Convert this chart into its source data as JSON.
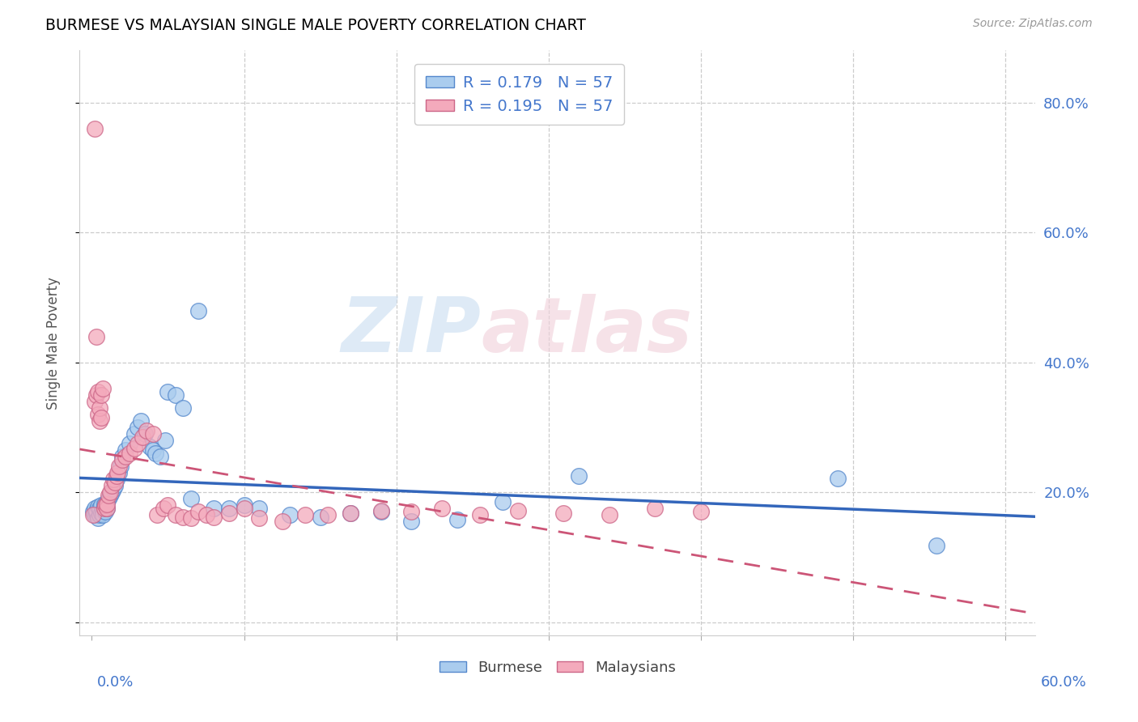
{
  "title": "BURMESE VS MALAYSIAN SINGLE MALE POVERTY CORRELATION CHART",
  "source": "Source: ZipAtlas.com",
  "ylabel": "Single Male Poverty",
  "yticks": [
    0.0,
    0.2,
    0.4,
    0.6,
    0.8
  ],
  "ytick_labels_right": [
    "",
    "20.0%",
    "40.0%",
    "60.0%",
    "80.0%"
  ],
  "xtick_labels_bottom": [
    "0.0%",
    "60.0%"
  ],
  "legend_r1": "R = 0.179   N = 57",
  "legend_r2": "R = 0.195   N = 57",
  "burmese_fill": "#aaccee",
  "burmese_edge": "#5588cc",
  "malaysian_fill": "#f4aabc",
  "malaysian_edge": "#cc6688",
  "trend_burmese_color": "#3366bb",
  "trend_malaysian_color": "#cc5577",
  "watermark_color": "#d0dde8",
  "watermark_color2": "#e8d0d8",
  "burmese_x": [
    0.001,
    0.002,
    0.002,
    0.003,
    0.003,
    0.004,
    0.004,
    0.005,
    0.005,
    0.006,
    0.006,
    0.007,
    0.007,
    0.008,
    0.008,
    0.009,
    0.01,
    0.01,
    0.011,
    0.012,
    0.013,
    0.014,
    0.015,
    0.016,
    0.018,
    0.019,
    0.02,
    0.022,
    0.025,
    0.028,
    0.03,
    0.032,
    0.035,
    0.038,
    0.04,
    0.042,
    0.045,
    0.048,
    0.05,
    0.055,
    0.06,
    0.065,
    0.07,
    0.08,
    0.09,
    0.1,
    0.11,
    0.13,
    0.15,
    0.17,
    0.19,
    0.21,
    0.24,
    0.27,
    0.32,
    0.49,
    0.555
  ],
  "burmese_y": [
    0.17,
    0.165,
    0.175,
    0.168,
    0.172,
    0.16,
    0.178,
    0.165,
    0.175,
    0.168,
    0.18,
    0.172,
    0.165,
    0.182,
    0.178,
    0.17,
    0.185,
    0.175,
    0.19,
    0.195,
    0.2,
    0.205,
    0.21,
    0.22,
    0.23,
    0.24,
    0.255,
    0.265,
    0.275,
    0.29,
    0.3,
    0.31,
    0.29,
    0.27,
    0.265,
    0.26,
    0.255,
    0.28,
    0.355,
    0.35,
    0.33,
    0.19,
    0.48,
    0.175,
    0.175,
    0.18,
    0.175,
    0.165,
    0.162,
    0.168,
    0.17,
    0.155,
    0.158,
    0.185,
    0.225,
    0.222,
    0.118
  ],
  "malaysian_x": [
    0.001,
    0.002,
    0.002,
    0.003,
    0.003,
    0.004,
    0.004,
    0.005,
    0.005,
    0.006,
    0.006,
    0.007,
    0.008,
    0.009,
    0.01,
    0.01,
    0.011,
    0.012,
    0.013,
    0.014,
    0.015,
    0.016,
    0.017,
    0.018,
    0.02,
    0.022,
    0.025,
    0.028,
    0.03,
    0.033,
    0.036,
    0.04,
    0.043,
    0.047,
    0.05,
    0.055,
    0.06,
    0.065,
    0.07,
    0.075,
    0.08,
    0.09,
    0.1,
    0.11,
    0.125,
    0.14,
    0.155,
    0.17,
    0.19,
    0.21,
    0.23,
    0.255,
    0.28,
    0.31,
    0.34,
    0.37,
    0.4
  ],
  "malaysian_y": [
    0.165,
    0.76,
    0.34,
    0.44,
    0.35,
    0.355,
    0.32,
    0.31,
    0.33,
    0.315,
    0.35,
    0.36,
    0.175,
    0.18,
    0.175,
    0.182,
    0.195,
    0.2,
    0.21,
    0.22,
    0.215,
    0.225,
    0.23,
    0.24,
    0.25,
    0.255,
    0.26,
    0.268,
    0.275,
    0.285,
    0.295,
    0.29,
    0.165,
    0.175,
    0.18,
    0.165,
    0.162,
    0.16,
    0.17,
    0.165,
    0.162,
    0.168,
    0.175,
    0.16,
    0.155,
    0.165,
    0.165,
    0.168,
    0.172,
    0.17,
    0.175,
    0.165,
    0.172,
    0.168,
    0.165,
    0.175,
    0.17
  ],
  "xlim": [
    -0.008,
    0.62
  ],
  "ylim": [
    -0.02,
    0.88
  ]
}
